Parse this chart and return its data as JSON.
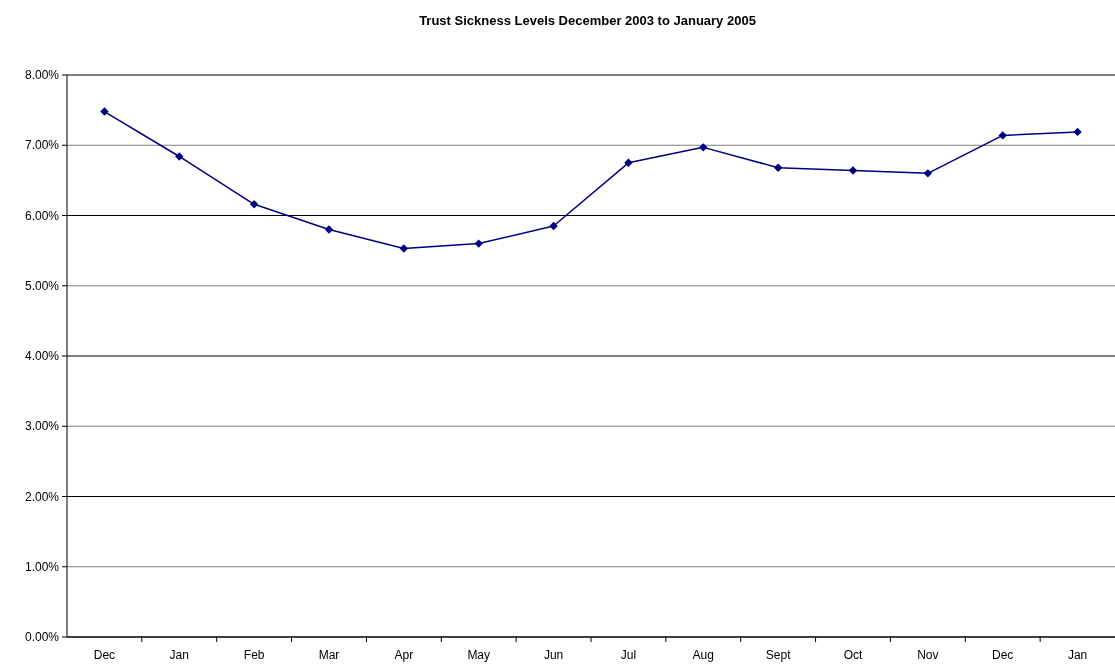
{
  "chart_data": {
    "type": "line",
    "title": "Trust Sickness Levels December 2003 to January 2005",
    "categories": [
      "Dec",
      "Jan",
      "Feb",
      "Mar",
      "Apr",
      "May",
      "Jun",
      "Jul",
      "Aug",
      "Sept",
      "Oct",
      "Nov",
      "Dec",
      "Jan"
    ],
    "series": [
      {
        "color": "#000080",
        "values": [
          7.48,
          6.84,
          6.16,
          5.8,
          5.53,
          5.6,
          5.85,
          6.75,
          6.97,
          6.68,
          6.64,
          6.6,
          7.14,
          7.19
        ]
      }
    ],
    "ylim": [
      0,
      8
    ],
    "yticks": [
      {
        "value": 0,
        "label": "0.00%"
      },
      {
        "value": 1,
        "label": "1.00%"
      },
      {
        "value": 2,
        "label": "2.00%"
      },
      {
        "value": 3,
        "label": "3.00%"
      },
      {
        "value": 4,
        "label": "4.00%"
      },
      {
        "value": 5,
        "label": "5.00%"
      },
      {
        "value": 6,
        "label": "6.00%"
      },
      {
        "value": 7,
        "label": "7.00%"
      },
      {
        "value": 8,
        "label": "8.00%"
      }
    ],
    "grid": "y",
    "marker": "diamond",
    "line_style": "solid"
  }
}
